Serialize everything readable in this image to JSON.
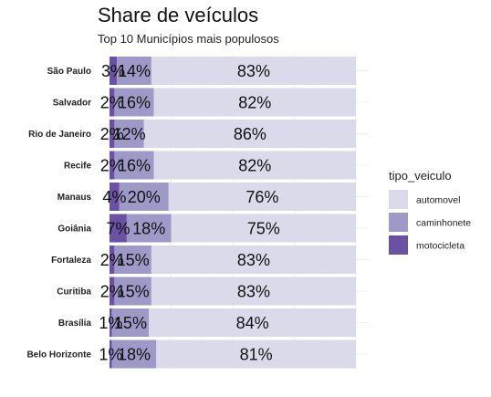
{
  "chart_data": {
    "type": "bar",
    "orientation": "horizontal",
    "stacked": "percent",
    "title": "Share de veículos",
    "subtitle": "Top 10 Municípios mais populosos",
    "categories": [
      "São Paulo",
      "Salvador",
      "Rio de Janeiro",
      "Recife",
      "Manaus",
      "Goiânia",
      "Fortaleza",
      "Curitiba",
      "Brasília",
      "Belo Horizonte"
    ],
    "series": [
      {
        "name": "motocicleta",
        "values": [
          3,
          2,
          2,
          2,
          4,
          7,
          2,
          2,
          1,
          1
        ],
        "labels": [
          "3%",
          "2%",
          "2%",
          "2%",
          "4%",
          "7%",
          "2%",
          "2%",
          "1%",
          "1%"
        ],
        "color": "#6a51a3"
      },
      {
        "name": "caminhonete",
        "values": [
          14,
          16,
          12,
          16,
          20,
          18,
          15,
          15,
          15,
          18
        ],
        "labels": [
          "14%",
          "16%",
          "12%",
          "16%",
          "20%",
          "18%",
          "15%",
          "15%",
          "15%",
          "18%"
        ],
        "color": "#9e9ac8"
      },
      {
        "name": "automovel",
        "values": [
          83,
          82,
          86,
          82,
          76,
          75,
          83,
          83,
          84,
          81
        ],
        "labels": [
          "83%",
          "82%",
          "86%",
          "82%",
          "76%",
          "75%",
          "83%",
          "83%",
          "84%",
          "81%"
        ],
        "color": "#dadaeb"
      }
    ],
    "legend": {
      "title": "tipo_veiculo",
      "position": "right",
      "order": [
        "automovel",
        "caminhonete",
        "motocicleta"
      ]
    },
    "xlim": [
      0,
      1
    ],
    "grid": true
  }
}
